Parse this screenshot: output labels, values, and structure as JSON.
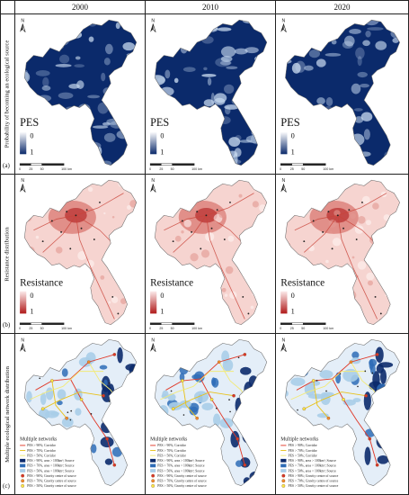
{
  "columns": [
    "2000",
    "2010",
    "2020"
  ],
  "rows": [
    {
      "label": "Probability of becoming an ecological source",
      "tag": "(a)",
      "legend_title": "PES",
      "scale_top": "0",
      "scale_bottom": "1"
    },
    {
      "label": "Resistance distribution",
      "tag": "(b)",
      "legend_title": "Resistance",
      "scale_top": "0",
      "scale_bottom": "1"
    },
    {
      "label": "Multiple ecological network distribution",
      "tag": "(c)",
      "legend_title": "Multiple networks"
    }
  ],
  "scalebar": {
    "ticks": [
      "0",
      "25",
      "50",
      "100"
    ],
    "unit": "km"
  },
  "north": "N",
  "network_legend": [
    {
      "text": "PES > 90%; Corridor",
      "kind": "line",
      "color": "#e03a2a"
    },
    {
      "text": "PES > 70%; Corridor",
      "kind": "line",
      "color": "#e8c21c"
    },
    {
      "text": "PES > 50%; Corridor",
      "kind": "line",
      "color": "#f2ea7a"
    },
    {
      "text": "PES > 90%, area > 100km²; Source",
      "kind": "box",
      "color": "#0b2a6b"
    },
    {
      "text": "PES > 70%, area > 100km²; Source",
      "kind": "box",
      "color": "#2e6cb7"
    },
    {
      "text": "PES > 50%, area > 100km²; Source",
      "kind": "box",
      "color": "#a9cde8"
    },
    {
      "text": "PES > 90%; Gravity centre of source",
      "kind": "dot",
      "color": "#d8372a"
    },
    {
      "text": "PES > 70%; Gravity centre of source",
      "kind": "dot",
      "color": "#f08a2e"
    },
    {
      "text": "PES > 50%; Gravity centre of source",
      "kind": "dot",
      "color": "#f7e84a"
    }
  ],
  "colors": {
    "pes_dark": "#0b2a6b",
    "pes_light": "#ffffff",
    "res_dark": "#b01a1a",
    "res_light": "#fbeaea",
    "network_base": "#e4eef8"
  }
}
